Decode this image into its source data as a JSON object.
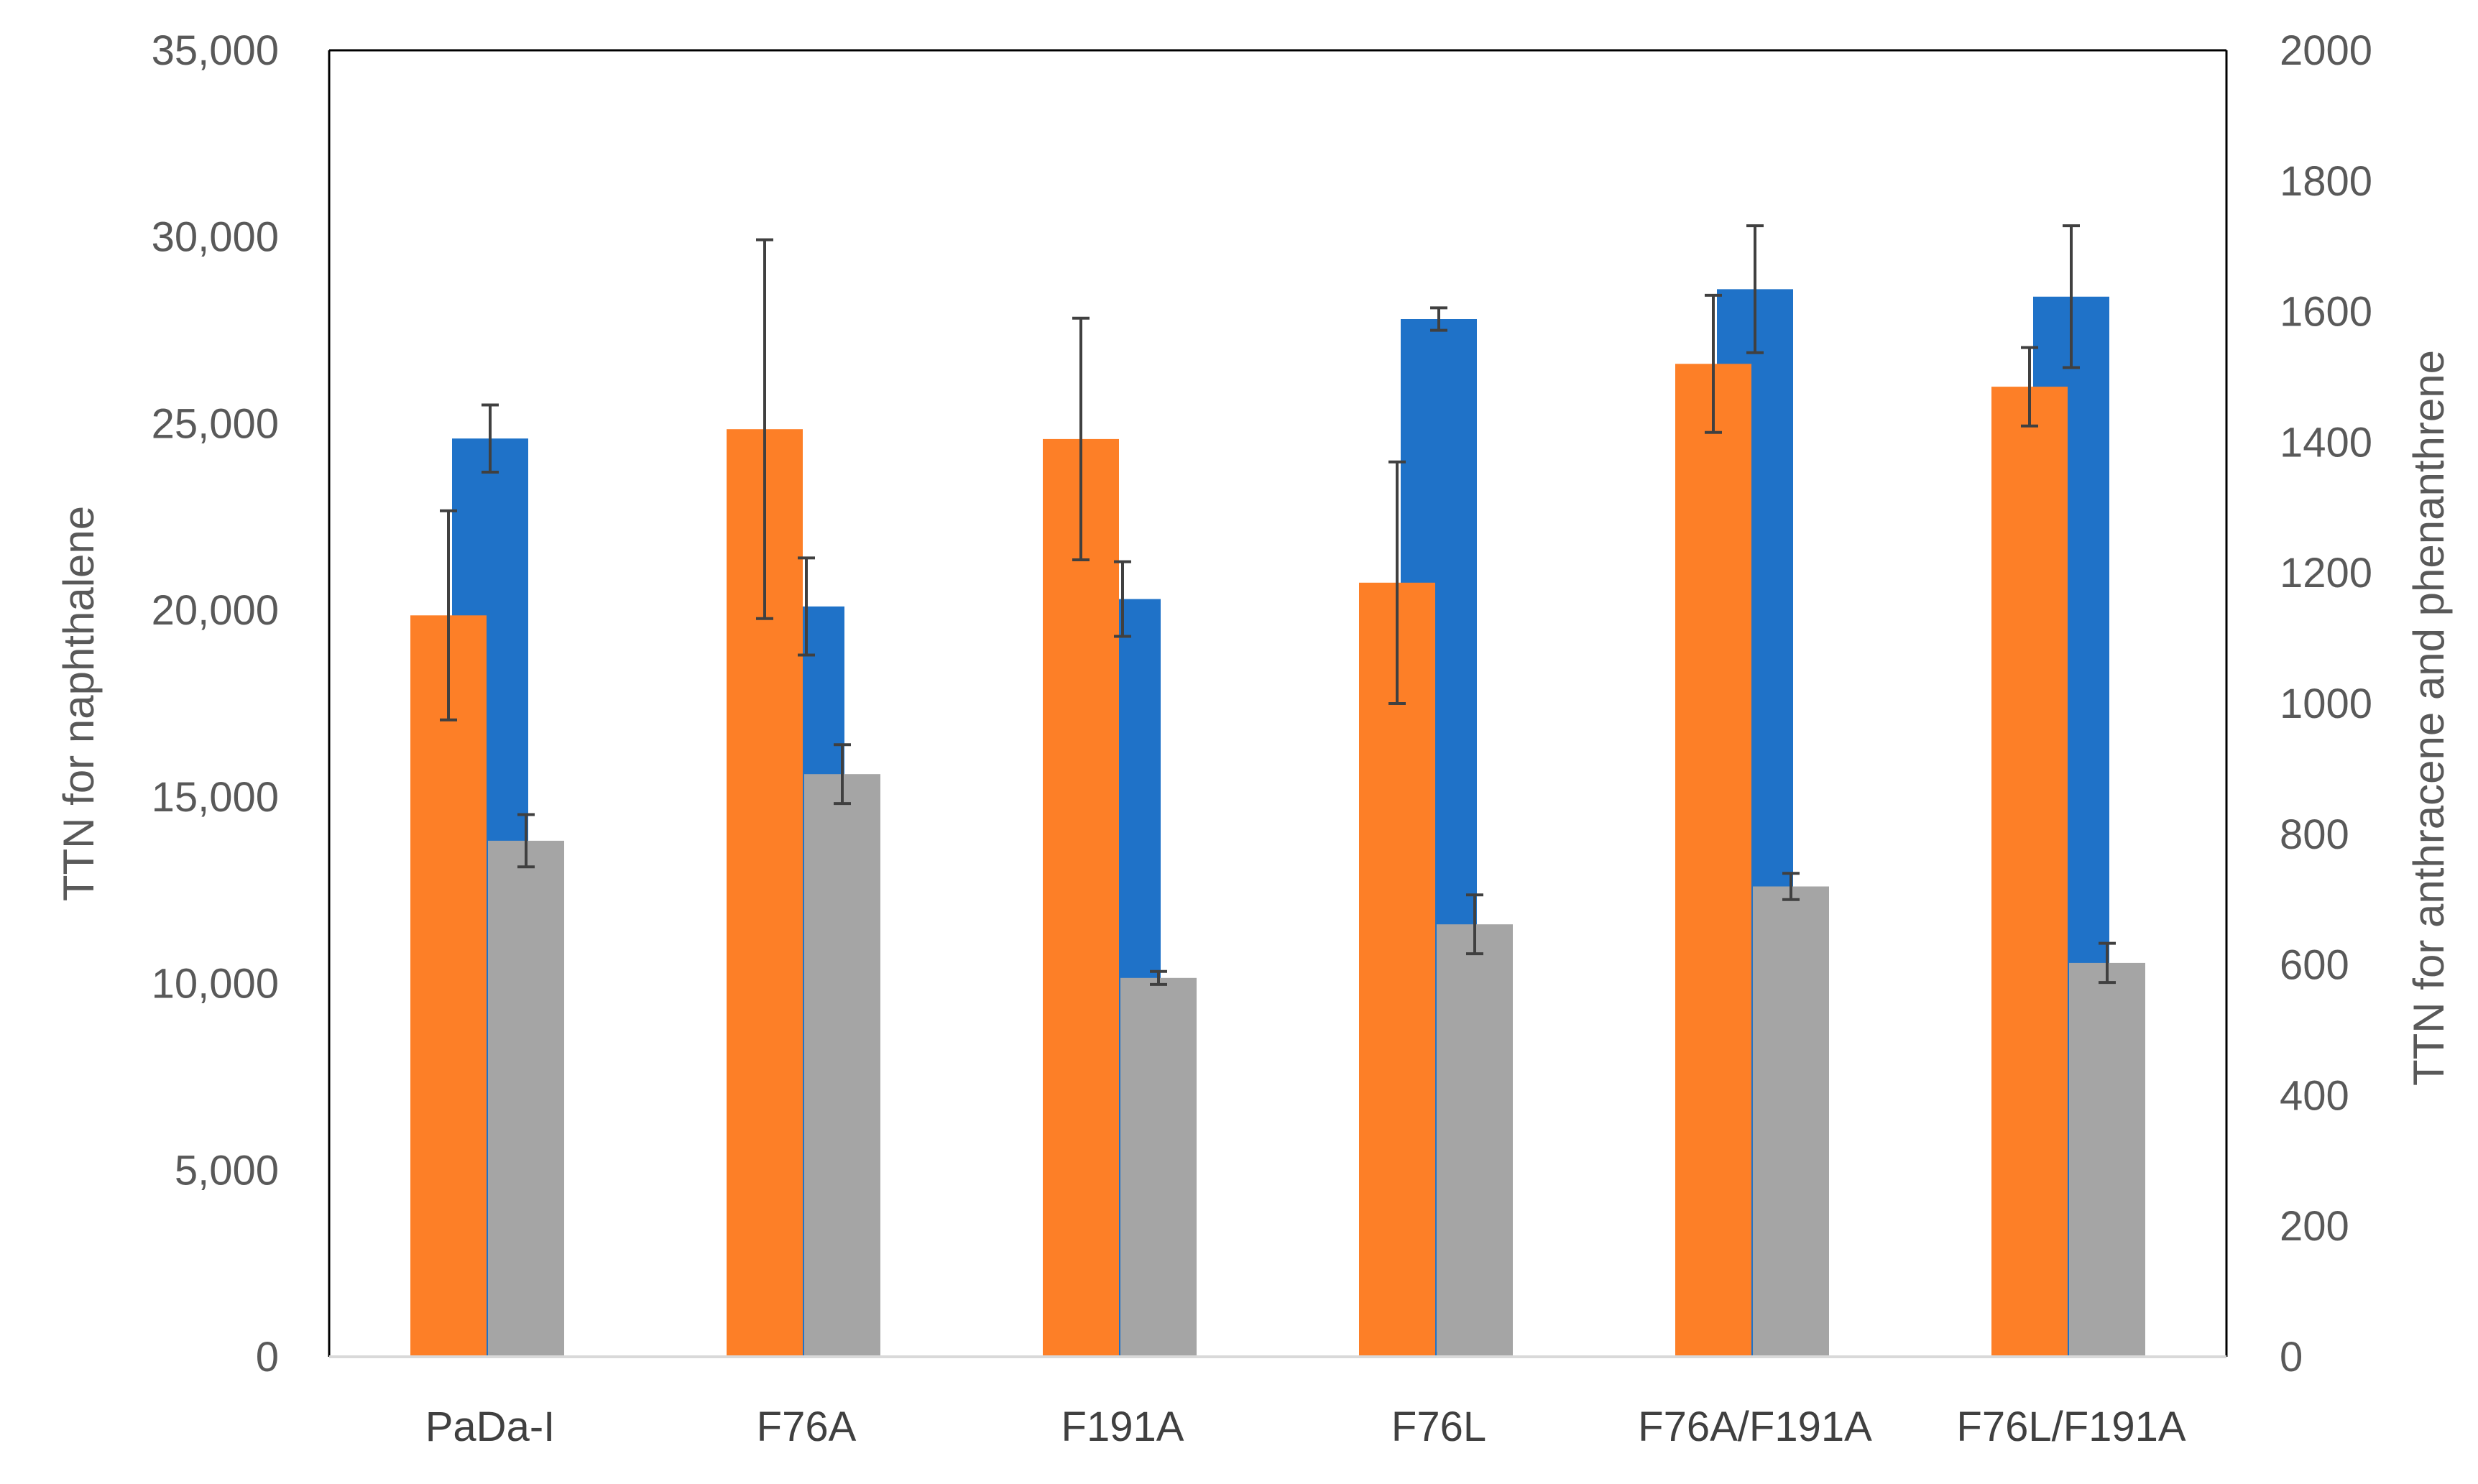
{
  "chart_data": {
    "type": "bar",
    "categories": [
      "PaDa-I",
      "F76A",
      "F191A",
      "F76L",
      "F76A/F191A",
      "F76L/F191A"
    ],
    "y_left": {
      "label": "TTN for naphthalene",
      "ylim": [
        0,
        35000
      ],
      "ticks": [
        0,
        5000,
        10000,
        15000,
        20000,
        25000,
        30000,
        35000
      ],
      "tick_labels": [
        "0",
        "5,000",
        "10,000",
        "15,000",
        "20,000",
        "25,000",
        "30,000",
        "35,000"
      ]
    },
    "y_right": {
      "label": "TTN for anthracene and phenanthrene",
      "ylim": [
        0,
        2000
      ],
      "ticks": [
        0,
        200,
        400,
        600,
        800,
        1000,
        1200,
        1400,
        1600,
        1800,
        2000
      ],
      "tick_labels": [
        "0",
        "200",
        "400",
        "600",
        "800",
        "1000",
        "1200",
        "1400",
        "1600",
        "1800",
        "2000"
      ]
    },
    "series": [
      {
        "axis": "left",
        "color": "#1f72c8",
        "values": [
          24600,
          20100,
          20300,
          27800,
          28600,
          28400
        ],
        "errors": [
          900,
          1300,
          1000,
          300,
          1700,
          1900
        ]
      },
      {
        "axis": "right",
        "color": "#fd7f27",
        "values": [
          1135,
          1420,
          1405,
          1185,
          1520,
          1485
        ],
        "errors": [
          160,
          290,
          185,
          185,
          105,
          60
        ]
      },
      {
        "axis": "right",
        "color": "#a5a5a5",
        "values": [
          790,
          892,
          580,
          662,
          720,
          603
        ],
        "errors": [
          40,
          45,
          10,
          45,
          20,
          30
        ]
      }
    ],
    "grid": false,
    "legend": "none",
    "colors": {
      "axis_line": "#000000",
      "error_bar": "#404040"
    }
  }
}
